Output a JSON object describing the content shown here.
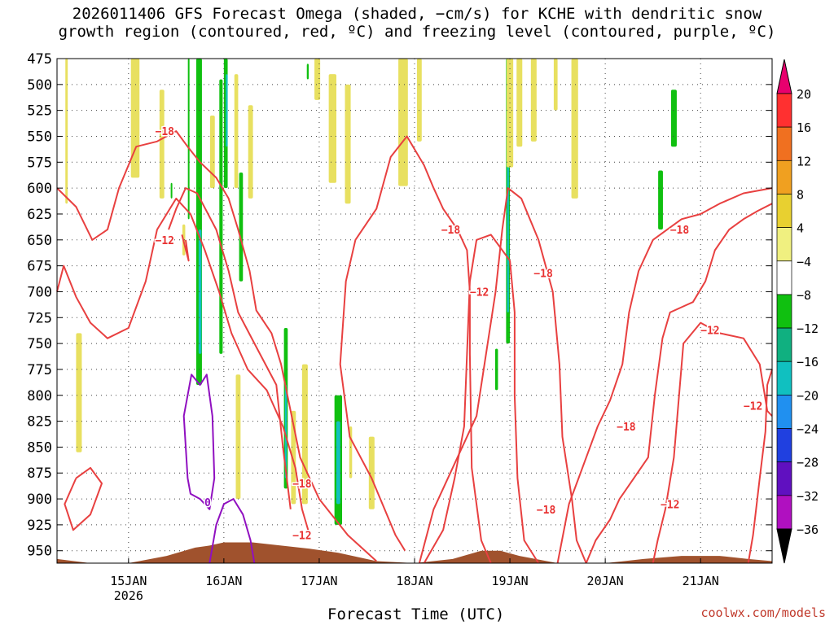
{
  "title": {
    "line1": "2026011406 GFS Forecast Omega (shaded, −cm/s) for KCHE with dendritic snow",
    "line2": "growth region (contoured, red, ºC) and freezing level (contoured, purple, ºC)"
  },
  "credit": "coolwx.com/models",
  "chart_data": {
    "type": "heatmap",
    "xlabel": "Forecast Time (UTC)",
    "x_range_days": [
      14.25,
      21.75
    ],
    "x_ticks": [
      {
        "label": "15JAN",
        "sub": "2026",
        "day": 15.0
      },
      {
        "label": "16JAN",
        "sub": "",
        "day": 16.0
      },
      {
        "label": "17JAN",
        "sub": "",
        "day": 17.0
      },
      {
        "label": "18JAN",
        "sub": "",
        "day": 18.0
      },
      {
        "label": "19JAN",
        "sub": "",
        "day": 19.0
      },
      {
        "label": "20JAN",
        "sub": "",
        "day": 20.0
      },
      {
        "label": "21JAN",
        "sub": "",
        "day": 21.0
      }
    ],
    "y_ticks": [
      "475",
      "500",
      "525",
      "550",
      "575",
      "600",
      "625",
      "650",
      "675",
      "700",
      "725",
      "750",
      "775",
      "800",
      "825",
      "850",
      "875",
      "900",
      "925",
      "950"
    ],
    "y_range": [
      475,
      962
    ],
    "colorbar": {
      "labels": [
        "20",
        "16",
        "12",
        "8",
        "4",
        "−4",
        "−8",
        "−12",
        "−16",
        "−20",
        "−24",
        "−28",
        "−32",
        "−36"
      ],
      "colors": [
        "#e8006e",
        "#ff3030",
        "#f07020",
        "#f0a020",
        "#e8d030",
        "#f0f080",
        "#ffffff",
        "#10c010",
        "#10b080",
        "#10c0c0",
        "#2090f0",
        "#2040e0",
        "#6010c0",
        "#b010c0",
        "#a0a0a0",
        "#000000"
      ]
    },
    "shading": [
      {
        "x": 14.35,
        "p1": 475,
        "p2": 615,
        "w": 0.025,
        "color": "#e8e060"
      },
      {
        "x": 14.48,
        "p1": 740,
        "p2": 855,
        "w": 0.06,
        "color": "#e8e060"
      },
      {
        "x": 15.07,
        "p1": 475,
        "p2": 590,
        "w": 0.09,
        "color": "#e8e060"
      },
      {
        "x": 15.35,
        "p1": 505,
        "p2": 610,
        "w": 0.05,
        "color": "#e8e060"
      },
      {
        "x": 15.58,
        "p1": 635,
        "p2": 665,
        "w": 0.03,
        "color": "#e8e060"
      },
      {
        "x": 15.74,
        "p1": 475,
        "p2": 790,
        "w": 0.06,
        "color": "#10c010"
      },
      {
        "x": 15.75,
        "p1": 640,
        "p2": 760,
        "w": 0.03,
        "color": "#10c0c0"
      },
      {
        "x": 15.88,
        "p1": 530,
        "p2": 600,
        "w": 0.05,
        "color": "#e8e060"
      },
      {
        "x": 15.97,
        "p1": 495,
        "p2": 760,
        "w": 0.035,
        "color": "#10c010"
      },
      {
        "x": 16.02,
        "p1": 475,
        "p2": 600,
        "w": 0.04,
        "color": "#10c010"
      },
      {
        "x": 16.03,
        "p1": 490,
        "p2": 560,
        "w": 0.02,
        "color": "#10c0c0"
      },
      {
        "x": 16.13,
        "p1": 490,
        "p2": 600,
        "w": 0.04,
        "color": "#e8e060"
      },
      {
        "x": 16.18,
        "p1": 585,
        "p2": 690,
        "w": 0.04,
        "color": "#10c010"
      },
      {
        "x": 16.15,
        "p1": 780,
        "p2": 900,
        "w": 0.05,
        "color": "#e8e060"
      },
      {
        "x": 16.28,
        "p1": 520,
        "p2": 610,
        "w": 0.05,
        "color": "#e8e060"
      },
      {
        "x": 16.65,
        "p1": 735,
        "p2": 890,
        "w": 0.04,
        "color": "#10c010"
      },
      {
        "x": 16.65,
        "p1": 790,
        "p2": 880,
        "w": 0.02,
        "color": "#10c0c0"
      },
      {
        "x": 16.73,
        "p1": 815,
        "p2": 905,
        "w": 0.05,
        "color": "#e8e060"
      },
      {
        "x": 16.85,
        "p1": 770,
        "p2": 905,
        "w": 0.06,
        "color": "#e8e060"
      },
      {
        "x": 17.2,
        "p1": 800,
        "p2": 925,
        "w": 0.08,
        "color": "#10c010"
      },
      {
        "x": 17.2,
        "p1": 825,
        "p2": 905,
        "w": 0.04,
        "color": "#10c0c0"
      },
      {
        "x": 17.33,
        "p1": 830,
        "p2": 880,
        "w": 0.03,
        "color": "#e8e060"
      },
      {
        "x": 17.55,
        "p1": 840,
        "p2": 910,
        "w": 0.06,
        "color": "#e8e060"
      },
      {
        "x": 16.98,
        "p1": 475,
        "p2": 515,
        "w": 0.06,
        "color": "#e8e060"
      },
      {
        "x": 17.14,
        "p1": 490,
        "p2": 595,
        "w": 0.08,
        "color": "#e8e060"
      },
      {
        "x": 17.3,
        "p1": 500,
        "p2": 615,
        "w": 0.06,
        "color": "#e8e060"
      },
      {
        "x": 17.88,
        "p1": 475,
        "p2": 598,
        "w": 0.1,
        "color": "#e8e060"
      },
      {
        "x": 18.05,
        "p1": 475,
        "p2": 555,
        "w": 0.05,
        "color": "#e8e060"
      },
      {
        "x": 18.86,
        "p1": 755,
        "p2": 795,
        "w": 0.03,
        "color": "#10c010"
      },
      {
        "x": 18.98,
        "p1": 475,
        "p2": 750,
        "w": 0.04,
        "color": "#10c010"
      },
      {
        "x": 18.98,
        "p1": 560,
        "p2": 720,
        "w": 0.02,
        "color": "#10c0c0"
      },
      {
        "x": 19.0,
        "p1": 475,
        "p2": 580,
        "w": 0.07,
        "color": "#e8e060"
      },
      {
        "x": 19.1,
        "p1": 475,
        "p2": 560,
        "w": 0.06,
        "color": "#e8e060"
      },
      {
        "x": 19.25,
        "p1": 475,
        "p2": 555,
        "w": 0.06,
        "color": "#e8e060"
      },
      {
        "x": 19.48,
        "p1": 475,
        "p2": 525,
        "w": 0.04,
        "color": "#e8e060"
      },
      {
        "x": 19.68,
        "p1": 475,
        "p2": 610,
        "w": 0.07,
        "color": "#e8e060"
      },
      {
        "x": 20.72,
        "p1": 505,
        "p2": 560,
        "w": 0.06,
        "color": "#10c010"
      },
      {
        "x": 20.58,
        "p1": 583,
        "p2": 640,
        "w": 0.05,
        "color": "#10c010"
      },
      {
        "x": 15.63,
        "p1": 475,
        "p2": 630,
        "w": 0.015,
        "color": "#10c010"
      },
      {
        "x": 15.45,
        "p1": 595,
        "p2": 610,
        "w": 0.015,
        "color": "#10c010"
      },
      {
        "x": 16.88,
        "p1": 480,
        "p2": 495,
        "w": 0.02,
        "color": "#10c010"
      }
    ],
    "contours_red": [
      [
        [
          14.25,
          600
        ],
        [
          14.45,
          618
        ],
        [
          14.62,
          650
        ],
        [
          14.78,
          640
        ],
        [
          14.9,
          600
        ],
        [
          15.08,
          560
        ],
        [
          15.3,
          555
        ],
        [
          15.5,
          545
        ],
        [
          15.62,
          560
        ],
        [
          15.75,
          575
        ],
        [
          15.92,
          590
        ],
        [
          16.05,
          610
        ],
        [
          16.15,
          640
        ],
        [
          16.27,
          680
        ],
        [
          16.34,
          718
        ],
        [
          16.5,
          740
        ],
        [
          16.6,
          770
        ],
        [
          16.8,
          860
        ],
        [
          17.0,
          900
        ],
        [
          17.3,
          935
        ],
        [
          17.6,
          960
        ]
      ],
      [
        [
          14.25,
          700
        ],
        [
          14.32,
          675
        ],
        [
          14.45,
          705
        ],
        [
          14.6,
          730
        ],
        [
          14.78,
          745
        ],
        [
          15.0,
          735
        ],
        [
          15.18,
          690
        ],
        [
          15.3,
          640
        ],
        [
          15.5,
          610
        ],
        [
          15.65,
          625
        ],
        [
          15.8,
          660
        ],
        [
          15.95,
          700
        ],
        [
          16.08,
          740
        ],
        [
          16.25,
          775
        ],
        [
          16.45,
          795
        ],
        [
          16.62,
          830
        ],
        [
          16.75,
          870
        ],
        [
          16.82,
          910
        ],
        [
          16.9,
          935
        ]
      ],
      [
        [
          14.45,
          880
        ],
        [
          14.6,
          870
        ],
        [
          14.72,
          885
        ],
        [
          14.6,
          915
        ],
        [
          14.42,
          930
        ],
        [
          14.33,
          905
        ],
        [
          14.45,
          880
        ]
      ],
      [
        [
          15.42,
          640
        ],
        [
          15.5,
          620
        ],
        [
          15.6,
          600
        ],
        [
          15.72,
          605
        ],
        [
          15.92,
          640
        ],
        [
          16.05,
          680
        ],
        [
          16.15,
          720
        ],
        [
          16.35,
          755
        ],
        [
          16.55,
          790
        ],
        [
          16.62,
          850
        ],
        [
          16.7,
          910
        ]
      ],
      [
        [
          15.56,
          645
        ],
        [
          15.63,
          670
        ],
        [
          15.6,
          650
        ]
      ],
      [
        [
          17.9,
          950
        ],
        [
          17.8,
          935
        ],
        [
          17.55,
          880
        ],
        [
          17.32,
          840
        ],
        [
          17.22,
          770
        ],
        [
          17.28,
          690
        ],
        [
          17.38,
          650
        ],
        [
          17.6,
          620
        ],
        [
          17.75,
          570
        ],
        [
          17.92,
          550
        ],
        [
          18.1,
          578
        ],
        [
          18.2,
          600
        ],
        [
          18.3,
          620
        ],
        [
          18.45,
          640
        ],
        [
          18.55,
          660
        ],
        [
          18.58,
          700
        ],
        [
          18.58,
          760
        ],
        [
          18.6,
          870
        ],
        [
          18.7,
          940
        ],
        [
          18.8,
          962
        ]
      ],
      [
        [
          18.1,
          962
        ],
        [
          18.3,
          930
        ],
        [
          18.42,
          880
        ],
        [
          18.52,
          830
        ],
        [
          18.55,
          760
        ],
        [
          18.58,
          690
        ],
        [
          18.65,
          650
        ],
        [
          18.8,
          645
        ],
        [
          19.0,
          670
        ],
        [
          19.05,
          720
        ],
        [
          19.05,
          800
        ],
        [
          19.08,
          880
        ],
        [
          19.15,
          940
        ],
        [
          19.3,
          962
        ]
      ],
      [
        [
          18.05,
          962
        ],
        [
          18.2,
          910
        ],
        [
          18.45,
          860
        ],
        [
          18.65,
          820
        ],
        [
          18.75,
          760
        ],
        [
          18.85,
          700
        ],
        [
          18.92,
          640
        ],
        [
          18.98,
          600
        ],
        [
          19.12,
          610
        ],
        [
          19.3,
          650
        ],
        [
          19.45,
          700
        ],
        [
          19.52,
          770
        ],
        [
          19.55,
          840
        ],
        [
          19.65,
          900
        ],
        [
          19.7,
          940
        ],
        [
          19.8,
          962
        ]
      ],
      [
        [
          19.5,
          962
        ],
        [
          19.62,
          905
        ],
        [
          19.72,
          880
        ],
        [
          19.82,
          855
        ],
        [
          19.92,
          830
        ],
        [
          20.05,
          805
        ],
        [
          20.18,
          770
        ],
        [
          20.25,
          720
        ],
        [
          20.35,
          680
        ],
        [
          20.5,
          650
        ],
        [
          20.65,
          640
        ],
        [
          20.8,
          630
        ],
        [
          21.0,
          625
        ],
        [
          21.2,
          615
        ],
        [
          21.45,
          605
        ],
        [
          21.75,
          600
        ]
      ],
      [
        [
          19.8,
          962
        ],
        [
          19.9,
          940
        ],
        [
          20.05,
          920
        ],
        [
          20.15,
          900
        ],
        [
          20.3,
          880
        ],
        [
          20.45,
          860
        ],
        [
          20.52,
          800
        ],
        [
          20.6,
          745
        ],
        [
          20.68,
          720
        ],
        [
          20.8,
          715
        ],
        [
          20.92,
          710
        ],
        [
          21.05,
          690
        ],
        [
          21.15,
          660
        ],
        [
          21.3,
          640
        ],
        [
          21.45,
          630
        ],
        [
          21.6,
          622
        ],
        [
          21.75,
          615
        ]
      ],
      [
        [
          20.5,
          962
        ],
        [
          20.55,
          940
        ],
        [
          20.63,
          910
        ],
        [
          20.72,
          860
        ],
        [
          20.82,
          750
        ],
        [
          21.0,
          730
        ],
        [
          21.2,
          740
        ],
        [
          21.45,
          745
        ],
        [
          21.62,
          770
        ],
        [
          21.7,
          815
        ],
        [
          21.75,
          820
        ]
      ],
      [
        [
          21.5,
          962
        ],
        [
          21.55,
          935
        ],
        [
          21.62,
          880
        ],
        [
          21.68,
          835
        ],
        [
          21.7,
          790
        ],
        [
          21.75,
          775
        ]
      ]
    ],
    "contours_purple": [
      [
        [
          15.62,
          880
        ],
        [
          15.58,
          820
        ],
        [
          15.66,
          780
        ],
        [
          15.75,
          790
        ],
        [
          15.82,
          780
        ],
        [
          15.88,
          820
        ],
        [
          15.9,
          880
        ],
        [
          15.85,
          910
        ],
        [
          15.75,
          900
        ],
        [
          15.65,
          895
        ],
        [
          15.62,
          880
        ]
      ],
      [
        [
          15.85,
          962
        ],
        [
          15.92,
          925
        ],
        [
          16.0,
          905
        ],
        [
          16.1,
          900
        ],
        [
          16.2,
          915
        ],
        [
          16.28,
          940
        ],
        [
          16.32,
          962
        ]
      ]
    ],
    "contour_labels": [
      {
        "text": "−18",
        "x": 15.38,
        "p": 545,
        "color": "#e83030"
      },
      {
        "text": "−12",
        "x": 15.38,
        "p": 650,
        "color": "#e83030"
      },
      {
        "text": "−18",
        "x": 16.82,
        "p": 885,
        "color": "#e83030"
      },
      {
        "text": "−12",
        "x": 16.82,
        "p": 935,
        "color": "#e83030"
      },
      {
        "text": "−18",
        "x": 18.38,
        "p": 640,
        "color": "#e83030"
      },
      {
        "text": "−12",
        "x": 18.68,
        "p": 700,
        "color": "#e83030"
      },
      {
        "text": "−18",
        "x": 19.35,
        "p": 682,
        "color": "#e83030"
      },
      {
        "text": "−18",
        "x": 19.38,
        "p": 910,
        "color": "#e83030"
      },
      {
        "text": "−18",
        "x": 20.22,
        "p": 830,
        "color": "#e83030"
      },
      {
        "text": "−12",
        "x": 20.68,
        "p": 905,
        "color": "#e83030"
      },
      {
        "text": "−18",
        "x": 20.78,
        "p": 640,
        "color": "#e83030"
      },
      {
        "text": "−12",
        "x": 21.1,
        "p": 737,
        "color": "#e83030"
      },
      {
        "text": "−12",
        "x": 21.55,
        "p": 810,
        "color": "#e83030"
      },
      {
        "text": "0",
        "x": 15.83,
        "p": 903,
        "color": "#9010c0"
      }
    ],
    "terrain_color": "#a0522d"
  }
}
